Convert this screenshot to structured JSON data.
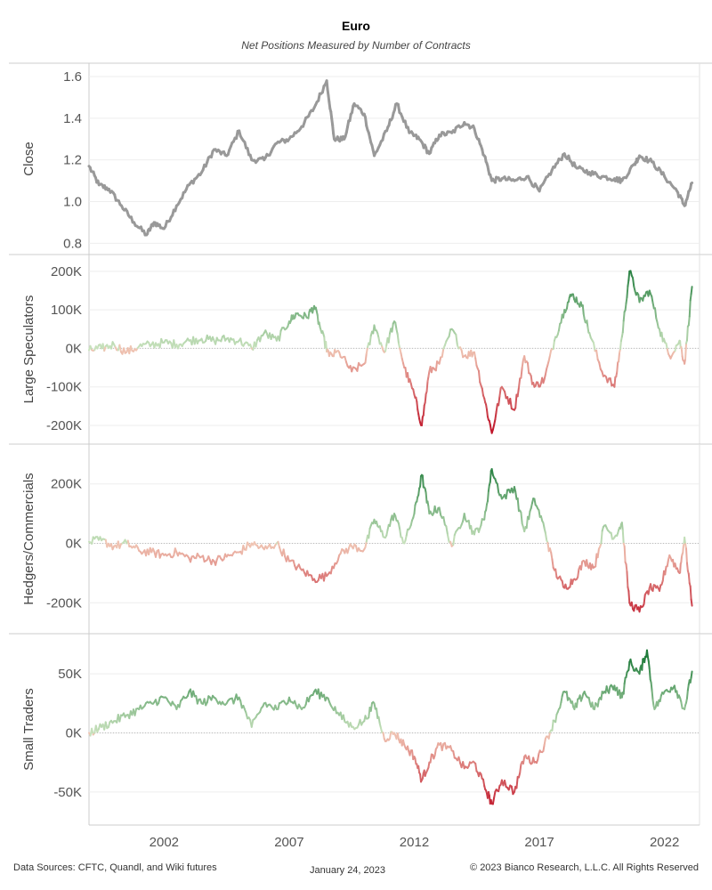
{
  "header": {
    "title": "Euro",
    "subtitle": "Net Positions Measured by Number of Contracts"
  },
  "footer": {
    "sources": "Data Sources: CFTC, Quandl, and Wiki futures",
    "date": "January 24, 2023",
    "copyright": "© 2023 Bianco Research, L.L.C. All Rights Reserved"
  },
  "colors": {
    "close_line": "#999999",
    "positive_dark": "#1e7b3a",
    "positive_light": "#c9e2bd",
    "negative_light": "#f0c6b4",
    "negative_dark": "#c0162a",
    "gridline": "#eeeeee",
    "zero_line": "#bbbbbb"
  },
  "chart_data": {
    "type": "line",
    "x_axis": {
      "label": "",
      "range": [
        1999.0,
        2023.4
      ],
      "ticks": [
        2002,
        2007,
        2012,
        2017,
        2022
      ],
      "tick_labels": [
        "2002",
        "2007",
        "2012",
        "2017",
        "2022"
      ]
    },
    "panels": [
      {
        "id": "close",
        "ylabel": "Close",
        "ylim": [
          0.78,
          1.63
        ],
        "ticks": [
          0.8,
          1.0,
          1.2,
          1.4,
          1.6
        ],
        "tick_labels": [
          "0.8",
          "1.0",
          "1.2",
          "1.4",
          "1.6"
        ],
        "color_mode": "solid",
        "zero_line": false,
        "x": [
          1999.0,
          1999.4,
          1999.8,
          2000.3,
          2000.8,
          2001.3,
          2001.6,
          2002.0,
          2002.5,
          2003.0,
          2003.5,
          2004.0,
          2004.5,
          2005.0,
          2005.5,
          2006.0,
          2006.5,
          2007.0,
          2007.5,
          2008.0,
          2008.5,
          2008.8,
          2009.2,
          2009.6,
          2010.0,
          2010.4,
          2010.9,
          2011.3,
          2011.8,
          2012.2,
          2012.6,
          2013.0,
          2013.5,
          2014.0,
          2014.4,
          2014.8,
          2015.1,
          2015.5,
          2016.0,
          2016.5,
          2017.0,
          2017.5,
          2018.0,
          2018.5,
          2019.0,
          2019.5,
          2020.0,
          2020.3,
          2020.8,
          2021.0,
          2021.5,
          2022.0,
          2022.5,
          2022.8,
          2023.1
        ],
        "y": [
          1.17,
          1.08,
          1.06,
          0.98,
          0.9,
          0.84,
          0.9,
          0.87,
          0.98,
          1.08,
          1.14,
          1.25,
          1.22,
          1.34,
          1.2,
          1.2,
          1.28,
          1.3,
          1.36,
          1.45,
          1.58,
          1.3,
          1.3,
          1.47,
          1.42,
          1.22,
          1.34,
          1.47,
          1.33,
          1.3,
          1.23,
          1.32,
          1.33,
          1.38,
          1.35,
          1.22,
          1.1,
          1.11,
          1.1,
          1.12,
          1.05,
          1.15,
          1.23,
          1.16,
          1.14,
          1.12,
          1.11,
          1.1,
          1.18,
          1.22,
          1.19,
          1.12,
          1.05,
          0.98,
          1.09
        ]
      },
      {
        "id": "large-speculators",
        "ylabel": "Large Speculators",
        "ylim": [
          -230000,
          225000
        ],
        "ticks": [
          200000,
          100000,
          0,
          -100000,
          -200000
        ],
        "tick_labels": [
          "200K",
          "100K",
          "0K",
          "-100K",
          "-200K"
        ],
        "color_mode": "diverging",
        "color_max": 210000,
        "zero_line": true,
        "x": [
          1999.0,
          1999.5,
          2000.0,
          2000.5,
          2001.0,
          2001.5,
          2002.0,
          2002.5,
          2003.0,
          2003.5,
          2004.0,
          2004.5,
          2005.0,
          2005.5,
          2006.0,
          2006.5,
          2007.0,
          2007.3,
          2007.7,
          2008.0,
          2008.3,
          2008.6,
          2009.0,
          2009.5,
          2010.0,
          2010.4,
          2010.8,
          2011.2,
          2011.6,
          2012.0,
          2012.3,
          2012.6,
          2013.0,
          2013.5,
          2014.0,
          2014.4,
          2014.8,
          2015.1,
          2015.5,
          2016.0,
          2016.4,
          2016.8,
          2017.2,
          2017.6,
          2018.0,
          2018.3,
          2018.7,
          2019.0,
          2019.5,
          2020.0,
          2020.3,
          2020.6,
          2021.0,
          2021.4,
          2021.8,
          2022.2,
          2022.6,
          2022.8,
          2023.1
        ],
        "y": [
          -5000,
          0,
          10000,
          -10000,
          5000,
          10000,
          15000,
          10000,
          20000,
          25000,
          20000,
          25000,
          20000,
          0,
          40000,
          20000,
          70000,
          90000,
          80000,
          110000,
          40000,
          -20000,
          -10000,
          -60000,
          -40000,
          60000,
          -10000,
          70000,
          -50000,
          -120000,
          -200000,
          -60000,
          -40000,
          50000,
          -20000,
          -10000,
          -130000,
          -220000,
          -100000,
          -160000,
          -20000,
          -100000,
          -80000,
          20000,
          100000,
          140000,
          110000,
          40000,
          -60000,
          -100000,
          30000,
          200000,
          120000,
          150000,
          50000,
          -20000,
          20000,
          -40000,
          160000
        ]
      },
      {
        "id": "hedgers-commercials",
        "ylabel": "Hedgers/Commercials",
        "ylim": [
          -280000,
          310000
        ],
        "ticks": [
          200000,
          0,
          -200000
        ],
        "tick_labels": [
          "200K",
          "0K",
          "-200K"
        ],
        "color_mode": "diverging",
        "color_max": 270000,
        "zero_line": true,
        "x": [
          1999.0,
          1999.5,
          2000.0,
          2000.5,
          2001.0,
          2001.5,
          2002.0,
          2002.5,
          2003.0,
          2003.5,
          2004.0,
          2004.5,
          2005.0,
          2005.5,
          2006.0,
          2006.5,
          2007.0,
          2007.5,
          2008.0,
          2008.5,
          2009.0,
          2009.5,
          2010.0,
          2010.4,
          2010.8,
          2011.2,
          2011.6,
          2012.0,
          2012.3,
          2012.6,
          2013.0,
          2013.5,
          2014.0,
          2014.4,
          2014.8,
          2015.1,
          2015.5,
          2016.0,
          2016.4,
          2016.8,
          2017.2,
          2017.6,
          2018.0,
          2018.4,
          2018.8,
          2019.2,
          2019.6,
          2020.0,
          2020.3,
          2020.6,
          2021.0,
          2021.4,
          2021.8,
          2022.2,
          2022.6,
          2022.8,
          2023.1
        ],
        "y": [
          5000,
          10000,
          -10000,
          0,
          -25000,
          -30000,
          -40000,
          -30000,
          -50000,
          -45000,
          -60000,
          -45000,
          -30000,
          0,
          -20000,
          0,
          -60000,
          -90000,
          -120000,
          -110000,
          -40000,
          -10000,
          -20000,
          80000,
          20000,
          100000,
          0,
          100000,
          230000,
          100000,
          120000,
          -10000,
          100000,
          30000,
          80000,
          250000,
          150000,
          190000,
          40000,
          150000,
          50000,
          -90000,
          -150000,
          -120000,
          -60000,
          -80000,
          60000,
          20000,
          70000,
          -200000,
          -230000,
          -150000,
          -160000,
          -40000,
          -100000,
          20000,
          -210000
        ]
      },
      {
        "id": "small-traders",
        "ylabel": "Small Traders",
        "ylim": [
          -72000,
          78000
        ],
        "ticks": [
          50000,
          0,
          -50000
        ],
        "tick_labels": [
          "50K",
          "0K",
          "-50K"
        ],
        "color_mode": "diverging",
        "color_max": 65000,
        "zero_line": true,
        "x": [
          1999.0,
          1999.5,
          2000.0,
          2000.5,
          2001.0,
          2001.5,
          2002.0,
          2002.5,
          2003.0,
          2003.5,
          2004.0,
          2004.5,
          2005.0,
          2005.5,
          2006.0,
          2006.5,
          2007.0,
          2007.5,
          2008.0,
          2008.5,
          2009.0,
          2009.5,
          2010.0,
          2010.4,
          2010.8,
          2011.2,
          2011.6,
          2012.0,
          2012.3,
          2012.6,
          2013.0,
          2013.5,
          2014.0,
          2014.4,
          2014.8,
          2015.1,
          2015.5,
          2016.0,
          2016.4,
          2016.8,
          2017.2,
          2017.6,
          2018.0,
          2018.4,
          2018.8,
          2019.2,
          2019.6,
          2020.0,
          2020.3,
          2020.6,
          2021.0,
          2021.3,
          2021.6,
          2022.0,
          2022.4,
          2022.8,
          2023.1
        ],
        "y": [
          0,
          5000,
          10000,
          15000,
          20000,
          25000,
          30000,
          20000,
          35000,
          25000,
          30000,
          25000,
          30000,
          5000,
          25000,
          20000,
          30000,
          20000,
          35000,
          30000,
          15000,
          5000,
          10000,
          25000,
          -5000,
          0,
          -10000,
          -20000,
          -40000,
          -25000,
          -10000,
          -15000,
          -30000,
          -25000,
          -45000,
          -60000,
          -40000,
          -50000,
          -20000,
          -25000,
          -10000,
          10000,
          35000,
          20000,
          35000,
          20000,
          35000,
          40000,
          30000,
          60000,
          50000,
          70000,
          20000,
          35000,
          40000,
          20000,
          52000
        ]
      }
    ]
  }
}
